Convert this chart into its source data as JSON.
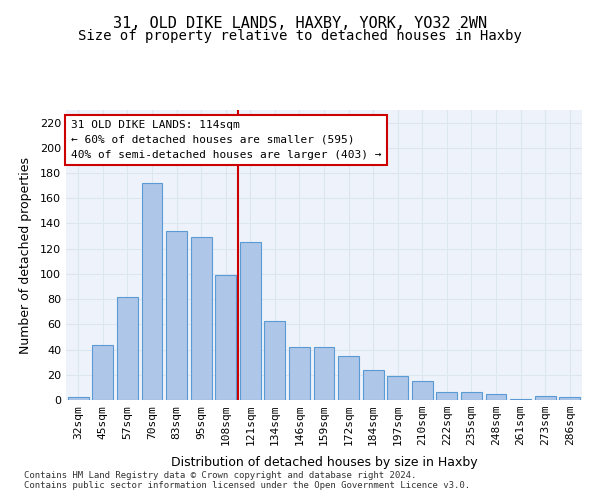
{
  "title1": "31, OLD DIKE LANDS, HAXBY, YORK, YO32 2WN",
  "title2": "Size of property relative to detached houses in Haxby",
  "xlabel": "Distribution of detached houses by size in Haxby",
  "ylabel": "Number of detached properties",
  "categories": [
    "32sqm",
    "45sqm",
    "57sqm",
    "70sqm",
    "83sqm",
    "95sqm",
    "108sqm",
    "121sqm",
    "134sqm",
    "146sqm",
    "159sqm",
    "172sqm",
    "184sqm",
    "197sqm",
    "210sqm",
    "222sqm",
    "235sqm",
    "248sqm",
    "261sqm",
    "273sqm",
    "286sqm"
  ],
  "values": [
    2,
    44,
    82,
    172,
    134,
    129,
    99,
    125,
    63,
    42,
    42,
    35,
    24,
    19,
    15,
    6,
    6,
    5,
    1,
    3,
    2
  ],
  "bar_color": "#aec6e8",
  "bar_edge_color": "#5b9bd5",
  "vline_x": 6.5,
  "vline_color": "#cc0000",
  "annotation_text": "31 OLD DIKE LANDS: 114sqm\n← 60% of detached houses are smaller (595)\n40% of semi-detached houses are larger (403) →",
  "annotation_box_color": "#ffffff",
  "annotation_box_edge": "#cc0000",
  "ylim": [
    0,
    230
  ],
  "yticks": [
    0,
    20,
    40,
    60,
    80,
    100,
    120,
    140,
    160,
    180,
    200,
    220
  ],
  "grid_color": "#dce6f1",
  "bg_color": "#eef3fb",
  "footnote": "Contains HM Land Registry data © Crown copyright and database right 2024.\nContains public sector information licensed under the Open Government Licence v3.0.",
  "title1_fontsize": 11,
  "title2_fontsize": 10,
  "xlabel_fontsize": 9,
  "ylabel_fontsize": 9,
  "tick_fontsize": 8,
  "annot_fontsize": 8,
  "footnote_fontsize": 6.5
}
